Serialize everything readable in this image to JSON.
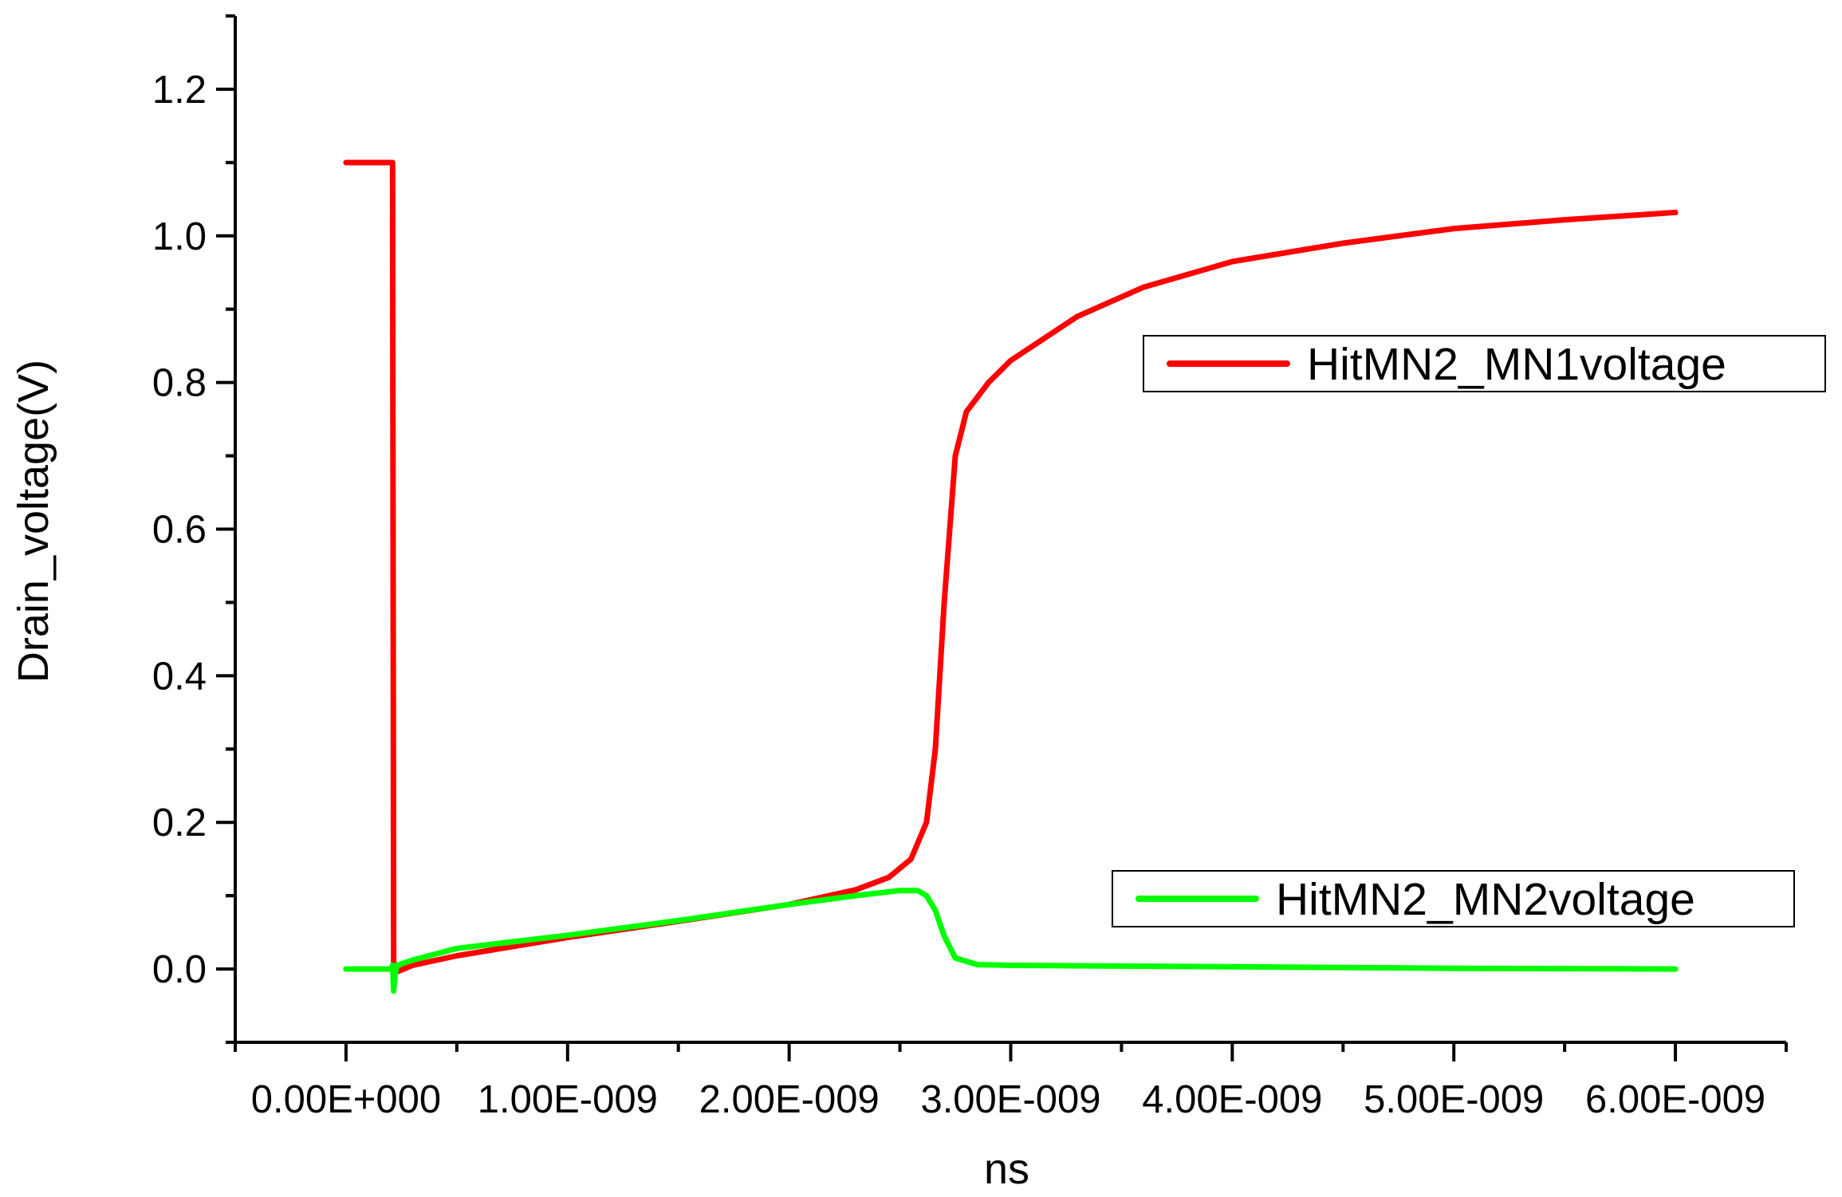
{
  "chart_data": {
    "type": "line",
    "xlabel": "ns",
    "ylabel": "Drain_voltage(V)",
    "xlim": [
      -5e-10,
      6.5e-09
    ],
    "ylim": [
      -0.1,
      1.3
    ],
    "x_ticks": [
      0,
      1e-09,
      2e-09,
      3e-09,
      4e-09,
      5e-09,
      6e-09
    ],
    "x_tick_labels": [
      "0.00E+000",
      "1.00E-009",
      "2.00E-009",
      "3.00E-009",
      "4.00E-009",
      "5.00E-009",
      "6.00E-009"
    ],
    "y_ticks": [
      0.0,
      0.2,
      0.4,
      0.6,
      0.8,
      1.0,
      1.2
    ],
    "y_tick_labels": [
      "0.0",
      "0.2",
      "0.4",
      "0.6",
      "0.8",
      "1.0",
      "1.2"
    ],
    "grid": false,
    "series": [
      {
        "name": "HitMN2_MN1voltage",
        "color": "#ff0000",
        "legend_position": "right-upper",
        "x": [
          0,
          2e-10,
          2.1e-10,
          2.15e-10,
          2.2e-10,
          3e-10,
          5e-10,
          1e-09,
          1.5e-09,
          2e-09,
          2.3e-09,
          2.45e-09,
          2.55e-09,
          2.62e-09,
          2.66e-09,
          2.7e-09,
          2.75e-09,
          2.8e-09,
          2.9e-09,
          3e-09,
          3.3e-09,
          3.6e-09,
          4e-09,
          4.5e-09,
          5e-09,
          5.5e-09,
          6e-09
        ],
        "values": [
          1.1,
          1.1,
          1.1,
          0.0,
          -0.005,
          0.005,
          0.018,
          0.043,
          0.065,
          0.088,
          0.108,
          0.125,
          0.15,
          0.2,
          0.3,
          0.5,
          0.7,
          0.76,
          0.8,
          0.83,
          0.89,
          0.93,
          0.965,
          0.99,
          1.01,
          1.022,
          1.032
        ]
      },
      {
        "name": "HitMN2_MN2voltage",
        "color": "#00ff00",
        "legend_position": "right-lower",
        "x": [
          0,
          2e-10,
          2.1e-10,
          2.15e-10,
          2.2e-10,
          2.3e-10,
          3e-10,
          5e-10,
          1e-09,
          1.5e-09,
          2e-09,
          2.3e-09,
          2.5e-09,
          2.58e-09,
          2.62e-09,
          2.66e-09,
          2.7e-09,
          2.75e-09,
          2.85e-09,
          3e-09,
          4e-09,
          5e-09,
          6e-09
        ],
        "values": [
          0.0,
          0.0,
          0.005,
          -0.03,
          -0.01,
          0.005,
          0.012,
          0.028,
          0.046,
          0.066,
          0.088,
          0.1,
          0.107,
          0.107,
          0.1,
          0.08,
          0.045,
          0.015,
          0.006,
          0.005,
          0.003,
          0.001,
          0.0
        ]
      }
    ]
  }
}
